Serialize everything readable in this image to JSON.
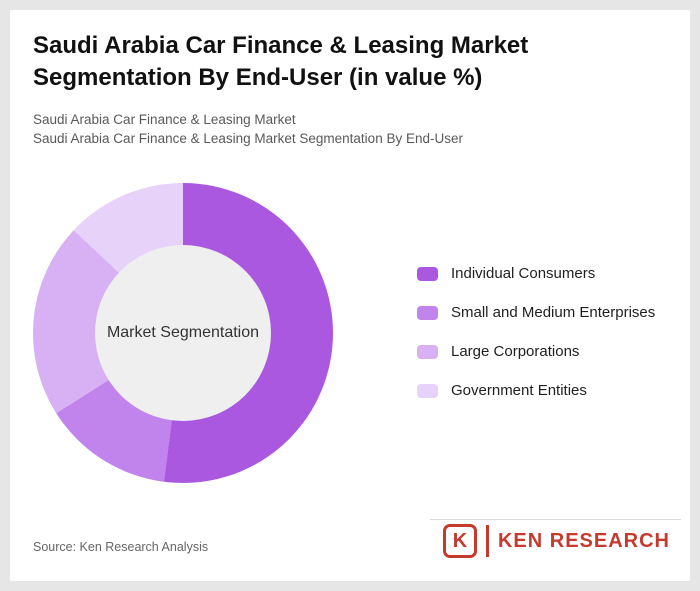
{
  "header": {
    "title_line1": "Saudi Arabia Car Finance & Leasing Market",
    "title_line2": "Segmentation By End-User (in value %)",
    "subtitle_line1": "Saudi Arabia Car Finance & Leasing Market",
    "subtitle_line2": "Saudi Arabia Car Finance & Leasing Market Segmentation By End-User"
  },
  "chart_data": {
    "type": "pie",
    "style": "donut",
    "title": "Saudi Arabia Car Finance & Leasing Market Segmentation By End-User (in value %)",
    "center_label": "Market Segmentation",
    "legend_position": "right",
    "start_angle_deg": 0,
    "direction": "clockwise",
    "unit": "%",
    "segments": [
      {
        "label": "Individual Consumers",
        "value": 52,
        "color": "#ab58e0"
      },
      {
        "label": "Small and Medium Enterprises",
        "value": 14,
        "color": "#c084ec"
      },
      {
        "label": "Large Corporations",
        "value": 21,
        "color": "#d8b0f4"
      },
      {
        "label": "Government Entities",
        "value": 13,
        "color": "#e7d2fa"
      }
    ]
  },
  "footer": {
    "source_text": "Source: Ken Research Analysis",
    "logo": {
      "monogram": "K",
      "brand_text": "KEN RESEARCH"
    }
  },
  "colors": {
    "brand_red": "#c43b2e",
    "donut_hole_fill": "#efefef",
    "card_bg": "#ffffff",
    "page_frame": "#e6e6e6"
  }
}
